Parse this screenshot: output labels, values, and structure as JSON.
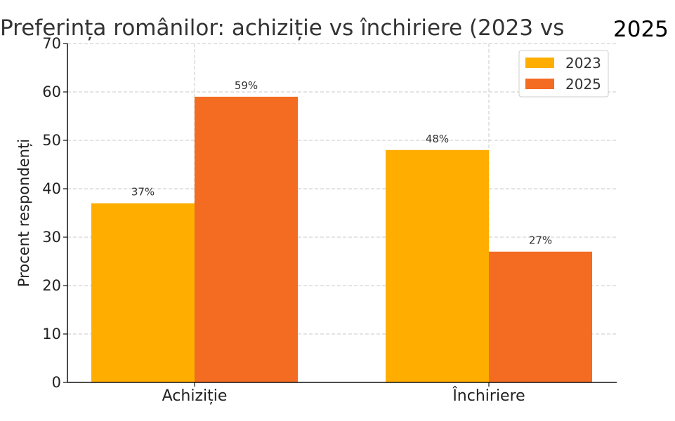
{
  "chart_data": {
    "type": "bar",
    "title": "Preferința românilor: achiziție vs închiriere (2023 vs",
    "title_tail": "2025",
    "xlabel": "",
    "ylabel": "Procent respondenți",
    "ylim": [
      0,
      70
    ],
    "yticks": [
      0,
      10,
      20,
      30,
      40,
      50,
      60,
      70
    ],
    "grid": true,
    "legend_position": "top-right",
    "categories": [
      "Achiziție",
      "Închiriere"
    ],
    "series": [
      {
        "name": "2023",
        "color": "#FFAE00",
        "values": [
          37,
          48
        ],
        "labels": [
          "37%",
          "48%"
        ]
      },
      {
        "name": "2025",
        "color": "#F46B22",
        "values": [
          59,
          27
        ],
        "labels": [
          "59%",
          "27%"
        ]
      }
    ]
  }
}
